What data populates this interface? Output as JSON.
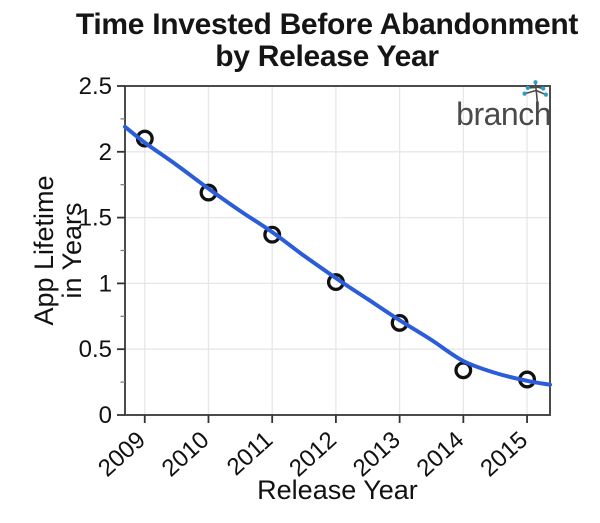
{
  "title": {
    "line1": "Time Invested Before Abandonment",
    "line2": "by Release Year"
  },
  "logo": {
    "text": "branch",
    "icon": "sprig-icon",
    "text_color": "#4a4a4a",
    "dot_color": "#2e9bc4"
  },
  "chart_data": {
    "type": "scatter",
    "title": "Time Invested Before Abandonment by Release Year",
    "xlabel": "Release Year",
    "ylabel": "App Lifetime in Years",
    "ylabel_lines": [
      "App Lifetime",
      "in Years"
    ],
    "x": [
      2009,
      2010,
      2011,
      2012,
      2013,
      2014,
      2015
    ],
    "y": [
      2.1,
      1.69,
      1.37,
      1.01,
      0.7,
      0.34,
      0.27
    ],
    "trend": {
      "x": [
        2008.69,
        2009,
        2009.5,
        2010,
        2010.5,
        2011,
        2011.5,
        2012,
        2012.5,
        2013,
        2013.5,
        2014,
        2014.5,
        2015,
        2015.36
      ],
      "y": [
        2.19,
        2.07,
        1.9,
        1.72,
        1.55,
        1.39,
        1.21,
        1.04,
        0.88,
        0.72,
        0.57,
        0.41,
        0.32,
        0.26,
        0.23
      ]
    },
    "xlim": [
      2008.69,
      2015.36
    ],
    "ylim": [
      0,
      2.5
    ],
    "xticks": [
      2009,
      2010,
      2011,
      2012,
      2013,
      2014,
      2015
    ],
    "xtick_labels": [
      "2009",
      "2010",
      "2011",
      "2012",
      "2013",
      "2014",
      "2015"
    ],
    "yticks": [
      0,
      0.5,
      1,
      1.5,
      2,
      2.5
    ],
    "ytick_labels": [
      "0",
      "0.5",
      "1",
      "1.5",
      "2",
      "2.5"
    ],
    "yminor_ticks": [
      0.25,
      0.75,
      1.25,
      1.75,
      2.25
    ],
    "grid": true,
    "legend_position": "none",
    "colors": {
      "line": "#2b5ddb",
      "marker_stroke": "#111111",
      "marker_fill": "#ffffff",
      "grid": "#e7e7e7",
      "frame": "#4b4b4b",
      "tick": "#333333",
      "minor_tick": "#777777",
      "text": "#111111"
    }
  }
}
